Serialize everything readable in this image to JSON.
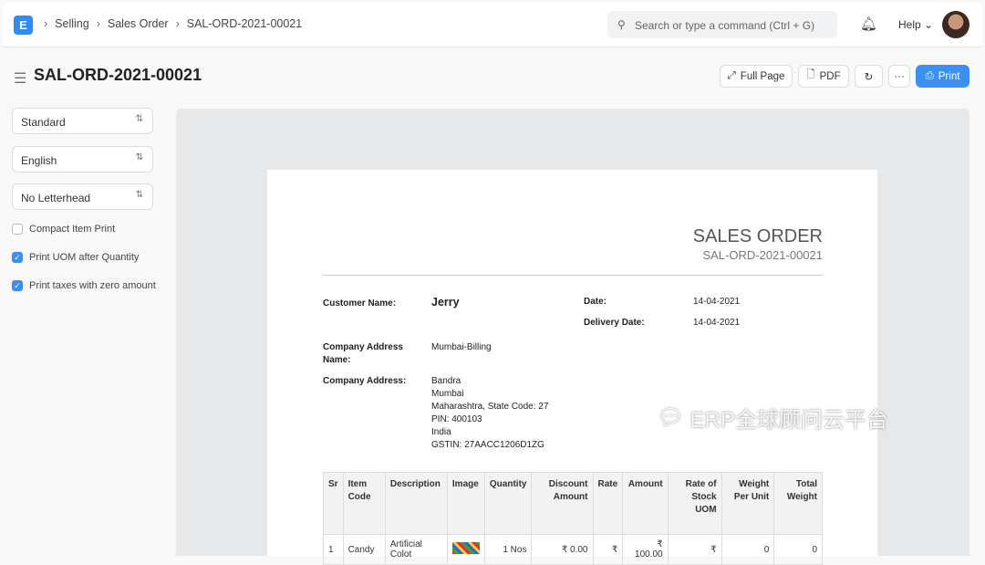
{
  "nav": {
    "logo": "E",
    "breadcrumbs": [
      "Selling",
      "Sales Order",
      "SAL-ORD-2021-00021"
    ],
    "search_placeholder": "Search or type a command (Ctrl + G)",
    "help": "Help"
  },
  "page": {
    "title": "SAL-ORD-2021-00021",
    "buttons": {
      "full_page": "Full Page",
      "pdf": "PDF",
      "more": "···",
      "print": "Print"
    }
  },
  "sidebar": {
    "print_format": "Standard",
    "language": "English",
    "letterhead": "No Letterhead",
    "options": [
      {
        "label": "Compact Item Print",
        "checked": false
      },
      {
        "label": "Print UOM after Quantity",
        "checked": true
      },
      {
        "label": "Print taxes with zero amount",
        "checked": true
      }
    ]
  },
  "doc": {
    "title": "SALES ORDER",
    "number": "SAL-ORD-2021-00021",
    "customer_label": "Customer Name:",
    "customer": "Jerry",
    "date_label": "Date:",
    "date": "14-04-2021",
    "delivery_label": "Delivery Date:",
    "delivery": "14-04-2021",
    "company_address_name_label": "Company Address Name:",
    "company_address_name": "Mumbai-Billing",
    "company_address_label": "Company Address:",
    "company_address": [
      "Bandra",
      "Mumbai",
      "Maharashtra, State Code: 27",
      "PIN: 400103",
      "India",
      "GSTIN: 27AACC1206D1ZG"
    ],
    "columns": [
      "Sr",
      "Item Code",
      "Description",
      "Image",
      "Quantity",
      "Discount Amount",
      "Rate",
      "Amount",
      "Rate of Stock UOM",
      "Weight Per Unit",
      "Total Weight"
    ],
    "rows": [
      [
        "1",
        "Candy",
        "Artificial Colot",
        "",
        "1 Nos",
        "₹ 0.00",
        "₹",
        "₹ 100.00",
        "₹",
        "0",
        "0"
      ]
    ]
  },
  "watermark": "ERP全球顾问云平台",
  "colors": {
    "accent": "#3b8ff0"
  }
}
